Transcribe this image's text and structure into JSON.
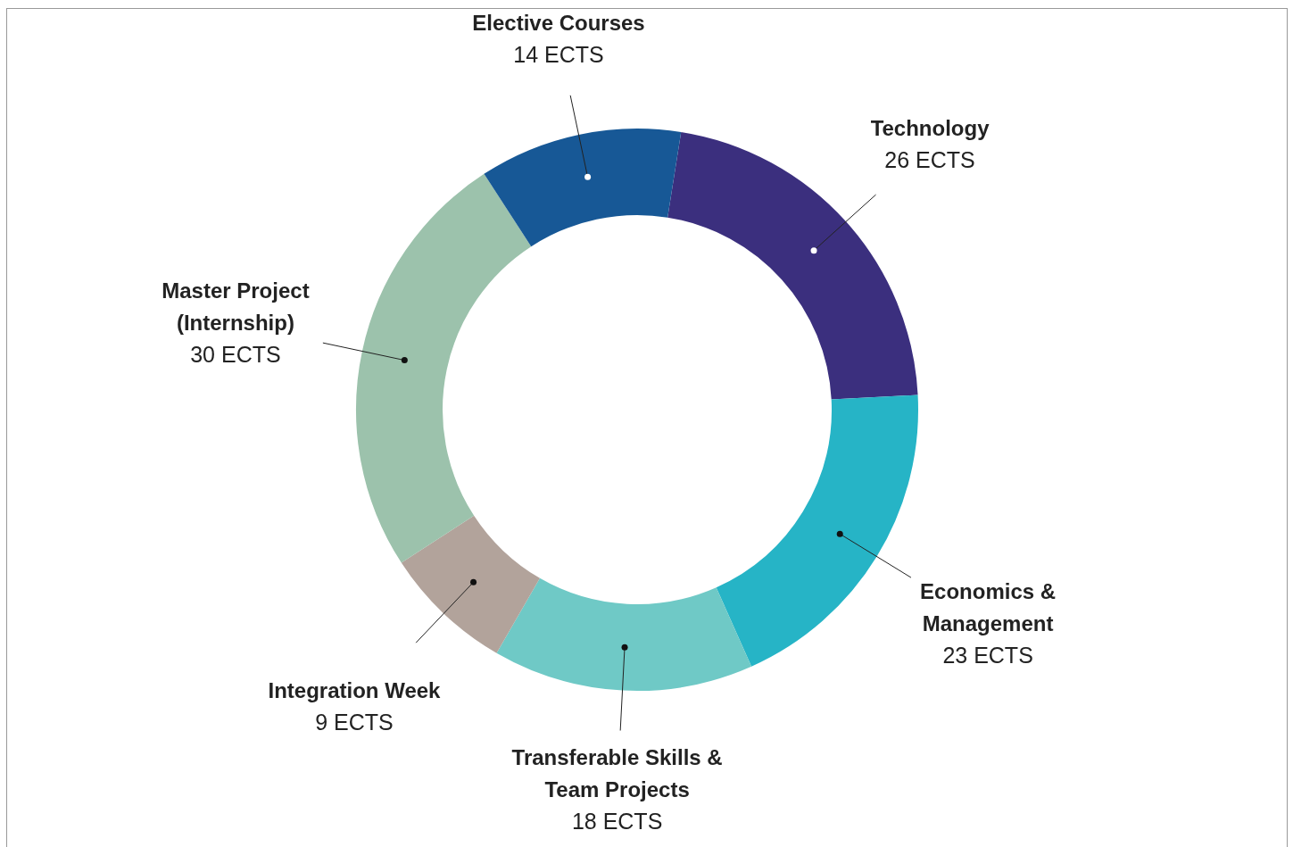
{
  "chart_data": {
    "type": "donut",
    "categories": [
      "Technology",
      "Economics & Management",
      "Transferable Skills & Team Projects",
      "Integration Week",
      "Master Project (Internship)",
      "Elective Courses"
    ],
    "values": [
      26,
      23,
      18,
      9,
      30,
      14
    ],
    "value_labels": [
      "26 ECTS",
      "23 ECTS",
      "18 ECTS",
      "9 ECTS",
      "30 ECTS",
      "14 ECTS"
    ],
    "colors": [
      "#3b2f7e",
      "#26b4c6",
      "#6fc9c6",
      "#b2a39b",
      "#9cc2ac",
      "#175896"
    ],
    "legend": false
  }
}
